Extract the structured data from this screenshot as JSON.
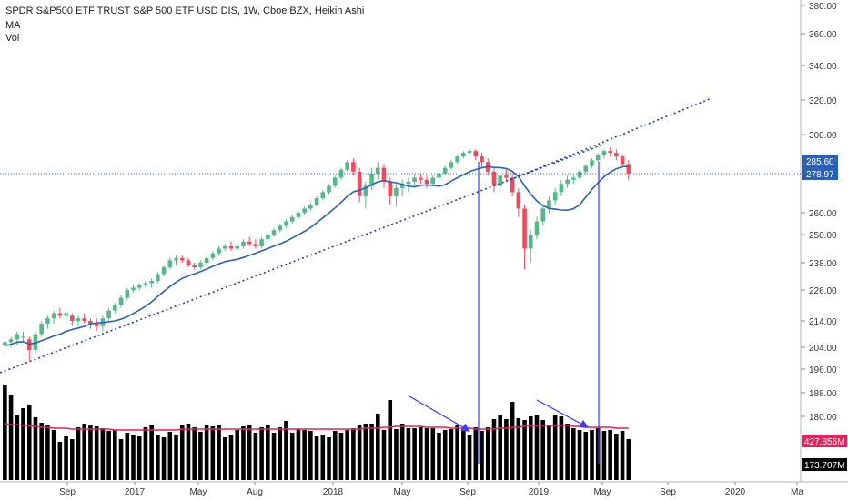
{
  "header": {
    "title": "SPDR S&P500 ETF TRUST S&P 500 ETF USD DIS, 1W, Cboe BZX, Heikin Ashi",
    "ma_label": "MA",
    "vol_label": "Vol"
  },
  "colors": {
    "up": "#53b987",
    "down": "#eb4d5c",
    "ma": "#2962b5",
    "vol_ma": "#e0245e",
    "volume_bar": "#000000",
    "trendline": "#1f3fb8",
    "marker_line": "#3b3bff",
    "crosshair": "#2962ff",
    "axis_text": "#333333"
  },
  "price_badges": [
    {
      "label": "285.60",
      "color": "#2962b5"
    },
    {
      "label": "278.97",
      "color": "#2962b5"
    }
  ],
  "volume_badges": [
    {
      "label": "427.856M",
      "color": "#e0245e"
    },
    {
      "label": "173.707M",
      "color": "#000000"
    }
  ],
  "chart_data": {
    "type": "candlestick",
    "y_ticks": [
      "380.00",
      "360.00",
      "340.00",
      "320.00",
      "300.00",
      "285.60",
      "278.97",
      "260.00",
      "250.00",
      "238.00",
      "226.00",
      "214.00",
      "204.00",
      "196.00",
      "188.00",
      "180.00"
    ],
    "x_ticks": [
      "Sep",
      "2017",
      "May",
      "Aug",
      "2018",
      "May",
      "Sep",
      "2019",
      "May",
      "Sep",
      "2020",
      "Ma"
    ],
    "last_price": 278.97,
    "ma_value": 285.6,
    "ohlc": [
      [
        205,
        207,
        203,
        206
      ],
      [
        206,
        208,
        204,
        207
      ],
      [
        207,
        210,
        205,
        209
      ],
      [
        208,
        210,
        206,
        208
      ],
      [
        207,
        208,
        199,
        203
      ],
      [
        203,
        210,
        202,
        209
      ],
      [
        209,
        214,
        208,
        213
      ],
      [
        213,
        216,
        211,
        215
      ],
      [
        215,
        218,
        213,
        217
      ],
      [
        217,
        219,
        215,
        216
      ],
      [
        216,
        218,
        214,
        217
      ],
      [
        216,
        217,
        212,
        214
      ],
      [
        214,
        216,
        212,
        215
      ],
      [
        215,
        217,
        213,
        214
      ],
      [
        214,
        215,
        211,
        213
      ],
      [
        213,
        215,
        210,
        212
      ],
      [
        212,
        216,
        210,
        215
      ],
      [
        215,
        219,
        214,
        218
      ],
      [
        218,
        221,
        217,
        220
      ],
      [
        220,
        224,
        219,
        223
      ],
      [
        223,
        227,
        222,
        226
      ],
      [
        226,
        228,
        225,
        227
      ],
      [
        227,
        229,
        226,
        228
      ],
      [
        228,
        230,
        227,
        229
      ],
      [
        229,
        231,
        227,
        230
      ],
      [
        230,
        234,
        229,
        233
      ],
      [
        233,
        237,
        232,
        236
      ],
      [
        236,
        240,
        235,
        239
      ],
      [
        239,
        241,
        237,
        240
      ],
      [
        240,
        241,
        238,
        239
      ],
      [
        239,
        240,
        236,
        237
      ],
      [
        237,
        238,
        235,
        236
      ],
      [
        236,
        239,
        235,
        238
      ],
      [
        238,
        241,
        237,
        240
      ],
      [
        240,
        243,
        239,
        242
      ],
      [
        242,
        245,
        241,
        244
      ],
      [
        244,
        246,
        243,
        245
      ],
      [
        245,
        247,
        243,
        244
      ],
      [
        244,
        246,
        243,
        245
      ],
      [
        245,
        248,
        244,
        247
      ],
      [
        247,
        249,
        245,
        246
      ],
      [
        246,
        248,
        244,
        245
      ],
      [
        245,
        249,
        244,
        248
      ],
      [
        248,
        251,
        247,
        250
      ],
      [
        250,
        253,
        249,
        252
      ],
      [
        252,
        255,
        251,
        254
      ],
      [
        254,
        257,
        253,
        256
      ],
      [
        256,
        259,
        255,
        258
      ],
      [
        258,
        261,
        257,
        260
      ],
      [
        260,
        263,
        259,
        262
      ],
      [
        262,
        265,
        261,
        264
      ],
      [
        264,
        268,
        263,
        267
      ],
      [
        267,
        271,
        266,
        270
      ],
      [
        270,
        274,
        269,
        273
      ],
      [
        273,
        278,
        272,
        277
      ],
      [
        277,
        282,
        276,
        281
      ],
      [
        281,
        286,
        280,
        285
      ],
      [
        285,
        287,
        278,
        280
      ],
      [
        280,
        282,
        265,
        268
      ],
      [
        268,
        275,
        262,
        273
      ],
      [
        273,
        282,
        271,
        279
      ],
      [
        279,
        285,
        276,
        282
      ],
      [
        282,
        284,
        272,
        275
      ],
      [
        275,
        277,
        264,
        268
      ],
      [
        268,
        274,
        263,
        272
      ],
      [
        272,
        276,
        268,
        274
      ],
      [
        274,
        277,
        270,
        275
      ],
      [
        275,
        279,
        273,
        277
      ],
      [
        277,
        279,
        274,
        276
      ],
      [
        276,
        278,
        272,
        274
      ],
      [
        274,
        278,
        273,
        277
      ],
      [
        277,
        280,
        276,
        279
      ],
      [
        279,
        283,
        278,
        282
      ],
      [
        282,
        286,
        281,
        285
      ],
      [
        285,
        289,
        284,
        288
      ],
      [
        288,
        291,
        287,
        290
      ],
      [
        290,
        292,
        289,
        291
      ],
      [
        291,
        292,
        286,
        288
      ],
      [
        288,
        290,
        282,
        285
      ],
      [
        285,
        287,
        278,
        280
      ],
      [
        280,
        282,
        270,
        273
      ],
      [
        273,
        280,
        270,
        278
      ],
      [
        278,
        281,
        275,
        277
      ],
      [
        277,
        279,
        268,
        270
      ],
      [
        270,
        272,
        258,
        262
      ],
      [
        262,
        264,
        235,
        244
      ],
      [
        244,
        252,
        238,
        250
      ],
      [
        250,
        258,
        248,
        256
      ],
      [
        256,
        264,
        254,
        262
      ],
      [
        262,
        268,
        260,
        266
      ],
      [
        266,
        272,
        264,
        270
      ],
      [
        270,
        276,
        268,
        274
      ],
      [
        274,
        278,
        272,
        276
      ],
      [
        276,
        279,
        274,
        277
      ],
      [
        277,
        281,
        276,
        280
      ],
      [
        280,
        284,
        279,
        283
      ],
      [
        283,
        287,
        282,
        286
      ],
      [
        286,
        290,
        285,
        289
      ],
      [
        289,
        292,
        287,
        291
      ],
      [
        291,
        293,
        288,
        290
      ],
      [
        290,
        292,
        286,
        288
      ],
      [
        288,
        289,
        282,
        284
      ],
      [
        284,
        286,
        276,
        279
      ]
    ],
    "volume": [
      105,
      93,
      72,
      79,
      82,
      69,
      63,
      60,
      55,
      42,
      48,
      45,
      58,
      62,
      60,
      59,
      57,
      54,
      55,
      45,
      52,
      50,
      48,
      58,
      60,
      49,
      47,
      53,
      49,
      60,
      62,
      58,
      53,
      60,
      59,
      61,
      47,
      49,
      55,
      59,
      60,
      52,
      58,
      61,
      52,
      58,
      65,
      52,
      56,
      55,
      54,
      48,
      50,
      47,
      54,
      52,
      55,
      57,
      60,
      62,
      62,
      73,
      55,
      88,
      56,
      62,
      57,
      57,
      58,
      57,
      57,
      52,
      55,
      56,
      60,
      56,
      50,
      58,
      54,
      58,
      67,
      71,
      67,
      86,
      68,
      66,
      70,
      72,
      66,
      61,
      71,
      70,
      62,
      57,
      55,
      53,
      55,
      57,
      54,
      55,
      51,
      54,
      45
    ],
    "volume_ma": [
      62,
      61,
      61,
      60,
      60,
      59,
      58,
      58,
      57,
      57,
      57,
      56,
      56,
      56,
      56,
      56,
      56,
      56,
      55,
      55,
      55,
      55,
      55,
      55,
      55,
      55,
      55,
      55,
      55,
      56,
      56,
      56,
      56,
      56,
      56,
      56,
      56,
      56,
      56,
      56,
      56,
      56,
      56,
      56,
      56,
      56,
      56,
      56,
      56,
      56,
      56,
      56,
      56,
      56,
      56,
      56,
      56,
      56,
      56,
      57,
      57,
      57,
      58,
      58,
      59,
      59,
      59,
      59,
      59,
      58,
      58,
      58,
      58,
      57,
      57,
      57,
      57,
      56,
      56,
      56,
      56,
      57,
      57,
      58,
      58,
      59,
      60,
      60,
      60,
      60,
      60,
      60,
      60,
      59,
      59,
      58,
      58,
      58,
      58,
      58,
      57,
      57,
      57
    ]
  }
}
